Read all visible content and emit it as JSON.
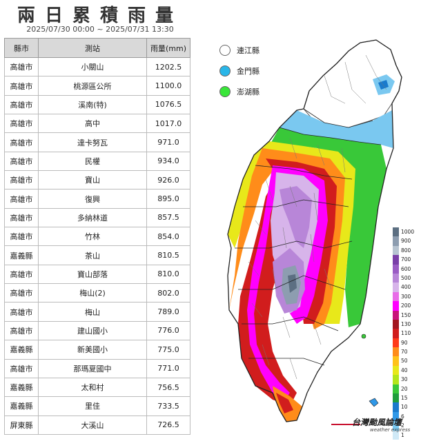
{
  "header": {
    "title": "兩日累積雨量",
    "subtitle": "2025/07/30 00:00 ~ 2025/07/31 13:30"
  },
  "table": {
    "columns": [
      "縣市",
      "測站",
      "雨量(mm)"
    ],
    "rows": [
      {
        "county": "高雄市",
        "station": "小關山",
        "rain": "1202.5"
      },
      {
        "county": "高雄市",
        "station": "桃源區公所",
        "rain": "1100.0"
      },
      {
        "county": "高雄市",
        "station": "溪南(特)",
        "rain": "1076.5"
      },
      {
        "county": "高雄市",
        "station": "高中",
        "rain": "1017.0"
      },
      {
        "county": "高雄市",
        "station": "達卡努瓦",
        "rain": "971.0"
      },
      {
        "county": "高雄市",
        "station": "民權",
        "rain": "934.0"
      },
      {
        "county": "高雄市",
        "station": "寶山",
        "rain": "926.0"
      },
      {
        "county": "高雄市",
        "station": "復興",
        "rain": "895.0"
      },
      {
        "county": "高雄市",
        "station": "多納林道",
        "rain": "857.5"
      },
      {
        "county": "高雄市",
        "station": "竹林",
        "rain": "854.0"
      },
      {
        "county": "嘉義縣",
        "station": "茶山",
        "rain": "810.5"
      },
      {
        "county": "高雄市",
        "station": "寶山部落",
        "rain": "810.0"
      },
      {
        "county": "高雄市",
        "station": "梅山(2)",
        "rain": "802.0"
      },
      {
        "county": "高雄市",
        "station": "梅山",
        "rain": "789.0"
      },
      {
        "county": "高雄市",
        "station": "建山國小",
        "rain": "776.0"
      },
      {
        "county": "嘉義縣",
        "station": "新美國小",
        "rain": "775.0"
      },
      {
        "county": "高雄市",
        "station": "那瑪夏國中",
        "rain": "771.0"
      },
      {
        "county": "嘉義縣",
        "station": "太和村",
        "rain": "756.5"
      },
      {
        "county": "嘉義縣",
        "station": "里佳",
        "rain": "733.5"
      },
      {
        "county": "屏東縣",
        "station": "大溪山",
        "rain": "726.5"
      }
    ]
  },
  "island_legend": [
    {
      "label": "連江縣",
      "color": "#ffffff"
    },
    {
      "label": "金門縣",
      "color": "#29b6e8"
    },
    {
      "label": "澎湖縣",
      "color": "#39e639"
    }
  ],
  "colorbar": {
    "labels": [
      "1000",
      "900",
      "800",
      "700",
      "600",
      "500",
      "400",
      "300",
      "200",
      "150",
      "130",
      "110",
      "90",
      "70",
      "50",
      "40",
      "30",
      "20",
      "15",
      "10",
      "6",
      "2",
      "1"
    ],
    "colors": [
      "#5c6f82",
      "#8d9db0",
      "#b7c4d1",
      "#7a3fa8",
      "#9a5cc4",
      "#b886d8",
      "#d7b4ea",
      "#e86ce8",
      "#ff00ff",
      "#c8137a",
      "#a3161f",
      "#d11d1d",
      "#ff3a1a",
      "#ff8c1a",
      "#ffc21a",
      "#e8e81a",
      "#b3e61a",
      "#39c839",
      "#1f9e3c",
      "#1a7acc",
      "#2f98e8",
      "#7ac8f0",
      "#cfe9f7"
    ]
  },
  "brand": {
    "name": "台灣颱風論壇",
    "subtitle": "weather express"
  }
}
